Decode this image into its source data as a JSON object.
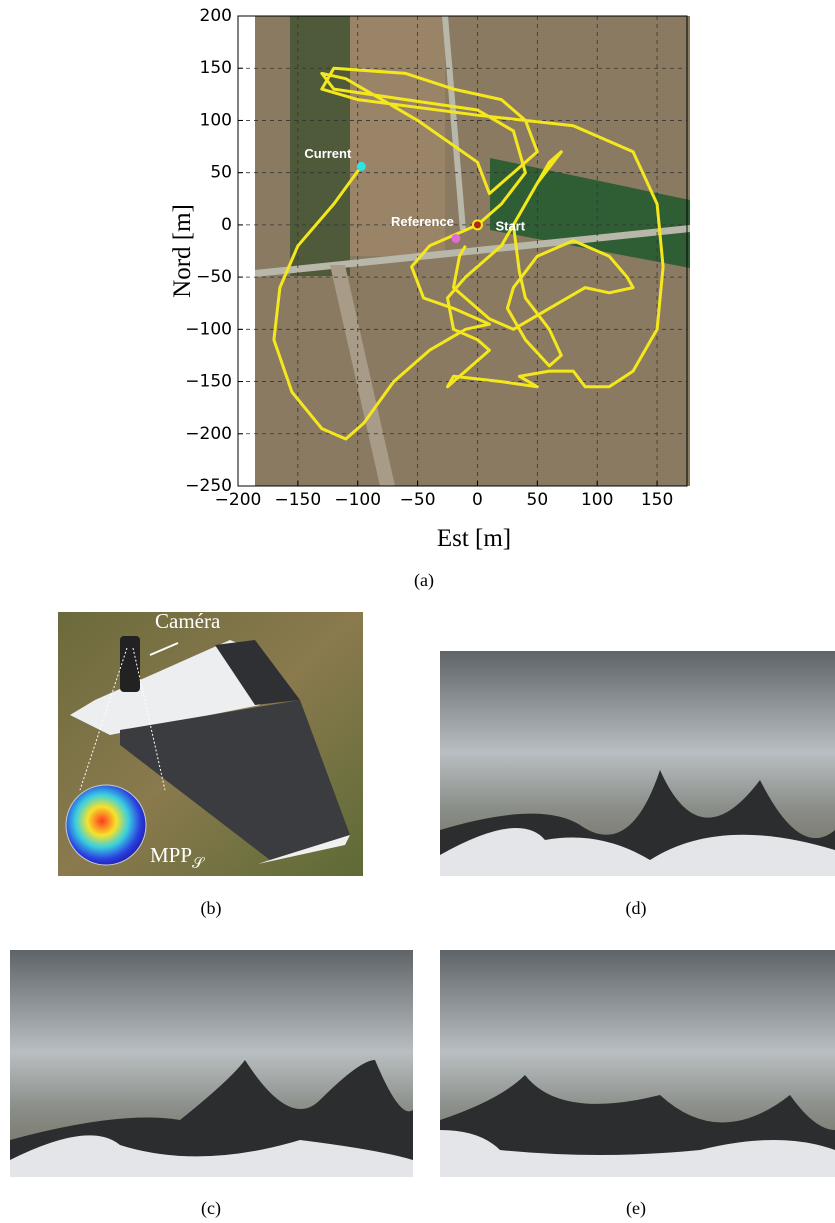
{
  "chart_data": {
    "type": "trajectory",
    "x_label": "Est [m]",
    "y_label": "Nord [m]",
    "caption": "(a)",
    "color": "#f4e81c",
    "grid": true,
    "xlim": [
      -200,
      175
    ],
    "ylim": [
      -250,
      200
    ],
    "xticks": [
      {
        "value": -200,
        "label": "−200"
      },
      {
        "value": -150,
        "label": "−150"
      },
      {
        "value": -100,
        "label": "−100"
      },
      {
        "value": -50,
        "label": "−50"
      },
      0,
      50,
      100,
      150
    ],
    "yticks": [
      200,
      150,
      100,
      50,
      0,
      {
        "value": -50,
        "label": "−50"
      },
      {
        "value": -100,
        "label": "−100"
      },
      {
        "value": -150,
        "label": "−150"
      },
      {
        "value": -200,
        "label": "−200"
      },
      {
        "value": -250,
        "label": "−250"
      }
    ],
    "x": [
      -97,
      -120,
      -150,
      -165,
      -170,
      -155,
      -130,
      -110,
      -95,
      -70,
      -40,
      -10,
      10,
      -20,
      -45,
      -55,
      -40,
      -10,
      0,
      20,
      40,
      30,
      0,
      -60,
      -120,
      -130,
      -110,
      -50,
      0,
      10,
      30,
      50,
      40,
      20,
      -20,
      -60,
      -120,
      -130,
      -100,
      0,
      80,
      130,
      150,
      155,
      150,
      130,
      110,
      90,
      80,
      60,
      35,
      50,
      20,
      -20,
      -25,
      -10,
      10,
      0,
      -20,
      -25,
      -10,
      20,
      40,
      60,
      70,
      50,
      30,
      35,
      40,
      60,
      70,
      60,
      40,
      25,
      30,
      50,
      80,
      110,
      125,
      130,
      110,
      90,
      60,
      30,
      10,
      -20,
      -15,
      -10
    ],
    "values": [
      56,
      20,
      -20,
      -60,
      -110,
      -160,
      -195,
      -205,
      -190,
      -150,
      -120,
      -100,
      -95,
      -80,
      -70,
      -40,
      -20,
      -5,
      0,
      20,
      50,
      90,
      110,
      120,
      130,
      145,
      140,
      100,
      60,
      30,
      50,
      70,
      100,
      120,
      130,
      145,
      150,
      130,
      120,
      105,
      95,
      70,
      20,
      -40,
      -100,
      -140,
      -155,
      -155,
      -140,
      -140,
      -145,
      -155,
      -150,
      -145,
      -155,
      -140,
      -120,
      -110,
      -100,
      -70,
      -50,
      -20,
      20,
      60,
      70,
      40,
      0,
      -45,
      -70,
      -100,
      -125,
      -135,
      -110,
      -80,
      -60,
      -30,
      -15,
      -30,
      -50,
      -60,
      -65,
      -60,
      -80,
      -100,
      -90,
      -60,
      -30,
      -20
    ],
    "points": [
      {
        "label": "Current",
        "x": -97,
        "y": 56,
        "color": "#2fe3e3"
      },
      {
        "label": "Reference",
        "x": -18,
        "y": -13,
        "color": "#e06ad8"
      },
      {
        "label": "Start",
        "x": 0,
        "y": 0,
        "color": "#b3261e"
      }
    ]
  },
  "panels": [
    {
      "caption": "(b)",
      "camera_label": "Caméra",
      "sphere_label": "MPP",
      "sphere_label_sub": "𝒮"
    },
    {
      "caption": "(d)"
    },
    {
      "caption": "(c)"
    },
    {
      "caption": "(e)"
    }
  ]
}
